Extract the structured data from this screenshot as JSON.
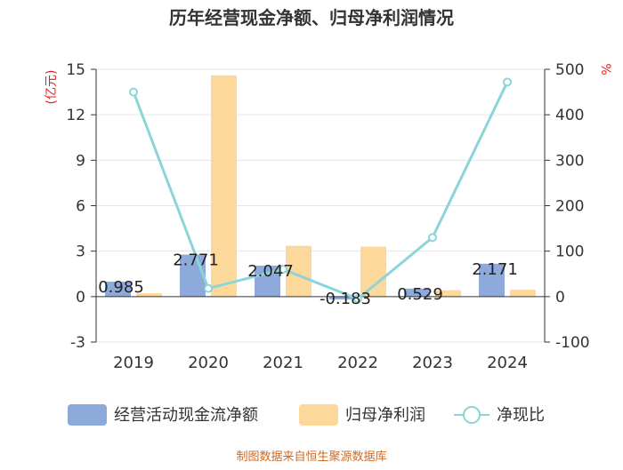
{
  "chart_data": {
    "type": "bar",
    "title": "历年经营现金净额、归母净利润情况",
    "categories": [
      "2019",
      "2020",
      "2021",
      "2022",
      "2023",
      "2024"
    ],
    "y_left": {
      "unit": "(亿元)",
      "ticks": [
        -3,
        0,
        3,
        6,
        9,
        12,
        15
      ],
      "range": [
        -3,
        15
      ]
    },
    "y_right": {
      "unit": "%",
      "ticks": [
        -100,
        0,
        100,
        200,
        300,
        400,
        500
      ],
      "range": [
        -100,
        500
      ]
    },
    "series": [
      {
        "name": "经营活动现金流净额",
        "type": "bar",
        "axis": "left",
        "color": "#8eaadb",
        "values": [
          0.985,
          2.771,
          2.047,
          -0.183,
          0.529,
          2.171
        ],
        "labels": [
          "0.985",
          "2.771",
          "2.047",
          "-0.183",
          "0.529",
          "2.171"
        ]
      },
      {
        "name": "归母净利润",
        "type": "bar",
        "axis": "left",
        "color": "#fdd89b",
        "values": [
          0.22,
          14.6,
          3.35,
          3.3,
          0.42,
          0.45
        ]
      },
      {
        "name": "净现比",
        "type": "line",
        "axis": "right",
        "color": "#8bd5d9",
        "values": [
          450,
          18,
          60,
          -5,
          130,
          472
        ]
      }
    ],
    "legend_position": "bottom",
    "grid": true
  },
  "footer": {
    "source": "制图数据来自恒生聚源数据库"
  }
}
